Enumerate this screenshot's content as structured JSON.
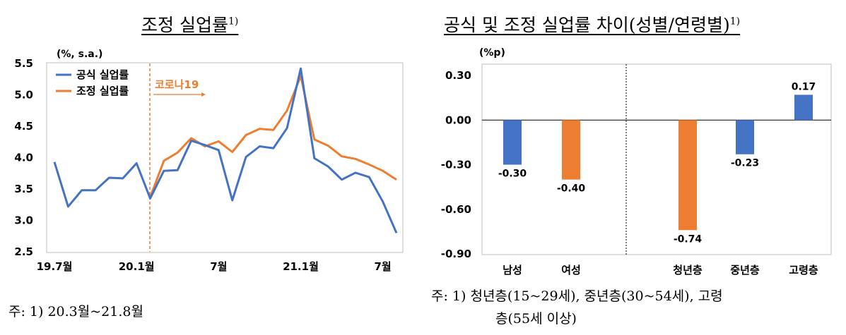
{
  "left_title": "조정 실업률",
  "left_title_sup": "1)",
  "right_title": "공식 및 조정 실업률 차이(성별/연령별)",
  "right_title_sup": "1)",
  "left_note": "주: 1) 20.3월~21.8월",
  "right_note_line1": "주: 1) 청년층(15~29세), 중년층(30~54세), 고령",
  "right_note_line2": "층(55세 이상)",
  "colors": {
    "official": "#4472C4",
    "adjusted": "#ED7D31",
    "covid_line": "#ED7D31"
  },
  "chart_data": [
    {
      "type": "line",
      "unit": "(%, s.a.)",
      "ylim": [
        2.5,
        5.5
      ],
      "yticks": [
        "5.5",
        "5.0",
        "4.5",
        "4.0",
        "3.5",
        "3.0",
        "2.5"
      ],
      "xtick_labels": [
        "19.7월",
        "20.1월",
        "7월",
        "21.1월",
        "7월"
      ],
      "annotation": "코로나19",
      "legend_position": "top-left",
      "grid": false,
      "series": [
        {
          "name": "공식 실업률",
          "values": [
            3.93,
            3.22,
            3.48,
            3.48,
            3.68,
            3.67,
            3.91,
            3.35,
            3.79,
            3.8,
            4.27,
            4.2,
            4.12,
            3.32,
            4.01,
            4.18,
            4.15,
            4.47,
            5.42,
            3.99,
            3.86,
            3.65,
            3.76,
            3.69,
            3.3,
            2.8
          ]
        },
        {
          "name": "조정 실업률",
          "values": [
            null,
            null,
            null,
            null,
            null,
            null,
            null,
            3.37,
            3.95,
            4.08,
            4.31,
            4.18,
            4.26,
            4.09,
            4.36,
            4.46,
            4.44,
            4.75,
            5.3,
            4.29,
            4.19,
            4.02,
            3.98,
            3.89,
            3.79,
            3.65
          ]
        }
      ]
    },
    {
      "type": "bar",
      "unit": "(%p)",
      "ylim": [
        -0.9,
        0.3
      ],
      "yticks": [
        "0.30",
        "0.00",
        "-0.30",
        "-0.60",
        "-0.90"
      ],
      "categories": [
        "남성",
        "여성",
        "청년층",
        "중년층",
        "고령층"
      ],
      "values": [
        -0.3,
        -0.4,
        -0.74,
        -0.23,
        0.17
      ],
      "value_labels": [
        "-0.30",
        "-0.40",
        "-0.74",
        "-0.23",
        "0.17"
      ],
      "bar_colors": [
        "#4472C4",
        "#ED7D31",
        "#ED7D31",
        "#4472C4",
        "#4472C4"
      ],
      "grid": false
    }
  ]
}
